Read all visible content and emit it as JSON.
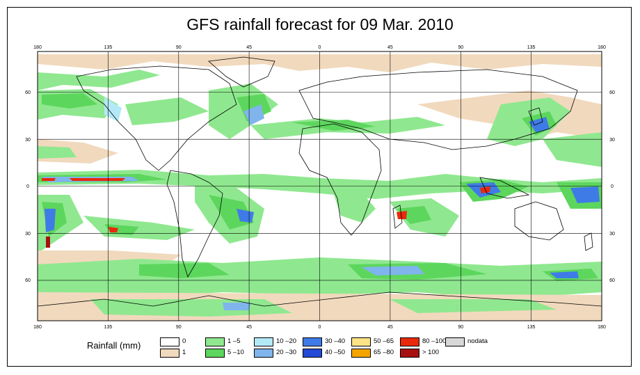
{
  "title": "GFS rainfall forecast for 09 Mar. 2010",
  "lon_ticks": [
    "180",
    "135",
    "90",
    "45",
    "0",
    "45",
    "90",
    "135",
    "180"
  ],
  "lat_ticks": [
    "60",
    "30",
    "0",
    "30",
    "60"
  ],
  "legend": {
    "title": "Rainfall (mm)",
    "items": [
      {
        "label": "0",
        "color": "#ffffff"
      },
      {
        "label": "1",
        "color": "#f1d9bd"
      },
      {
        "label": "1 –5",
        "color": "#8fe88f"
      },
      {
        "label": "5 –10",
        "color": "#5dd65d"
      },
      {
        "label": "10 –20",
        "color": "#b3e9f7"
      },
      {
        "label": "20 –30",
        "color": "#7fb5ec"
      },
      {
        "label": "30 –40",
        "color": "#3f7be6"
      },
      {
        "label": "40 –50",
        "color": "#2349d6"
      },
      {
        "label": "50 –65",
        "color": "#fde385"
      },
      {
        "label": "65 –80",
        "color": "#f4a300"
      },
      {
        "label": "80 –100",
        "color": "#e8290c"
      },
      {
        "label": "> 100",
        "color": "#a81010"
      },
      {
        "label": "nodata",
        "color": "#d8d8d8"
      }
    ]
  }
}
